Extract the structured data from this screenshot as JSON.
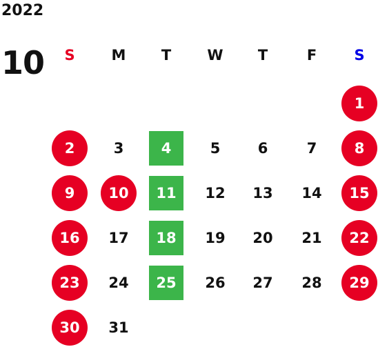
{
  "calendar": {
    "year": "2022",
    "month": "10",
    "weekdays": [
      "S",
      "M",
      "T",
      "W",
      "T",
      "F",
      "S"
    ],
    "first_weekday_index": 6,
    "days": [
      {
        "n": "1",
        "mark": "holiday"
      },
      {
        "n": "2",
        "mark": "holiday"
      },
      {
        "n": "3",
        "mark": "none"
      },
      {
        "n": "4",
        "mark": "market"
      },
      {
        "n": "5",
        "mark": "none"
      },
      {
        "n": "6",
        "mark": "none"
      },
      {
        "n": "7",
        "mark": "none"
      },
      {
        "n": "8",
        "mark": "holiday"
      },
      {
        "n": "9",
        "mark": "holiday"
      },
      {
        "n": "10",
        "mark": "holiday"
      },
      {
        "n": "11",
        "mark": "market"
      },
      {
        "n": "12",
        "mark": "none"
      },
      {
        "n": "13",
        "mark": "none"
      },
      {
        "n": "14",
        "mark": "none"
      },
      {
        "n": "15",
        "mark": "holiday"
      },
      {
        "n": "16",
        "mark": "holiday"
      },
      {
        "n": "17",
        "mark": "none"
      },
      {
        "n": "18",
        "mark": "market"
      },
      {
        "n": "19",
        "mark": "none"
      },
      {
        "n": "20",
        "mark": "none"
      },
      {
        "n": "21",
        "mark": "none"
      },
      {
        "n": "22",
        "mark": "holiday"
      },
      {
        "n": "23",
        "mark": "holiday"
      },
      {
        "n": "24",
        "mark": "none"
      },
      {
        "n": "25",
        "mark": "market"
      },
      {
        "n": "26",
        "mark": "none"
      },
      {
        "n": "27",
        "mark": "none"
      },
      {
        "n": "28",
        "mark": "none"
      },
      {
        "n": "29",
        "mark": "holiday"
      },
      {
        "n": "30",
        "mark": "holiday"
      },
      {
        "n": "31",
        "mark": "none"
      }
    ]
  },
  "colors": {
    "sunday_header": "#e60023",
    "saturday_header": "#0000e6",
    "holiday_circle": "#e60023",
    "market_square": "#3cb54a",
    "text": "#111111"
  }
}
